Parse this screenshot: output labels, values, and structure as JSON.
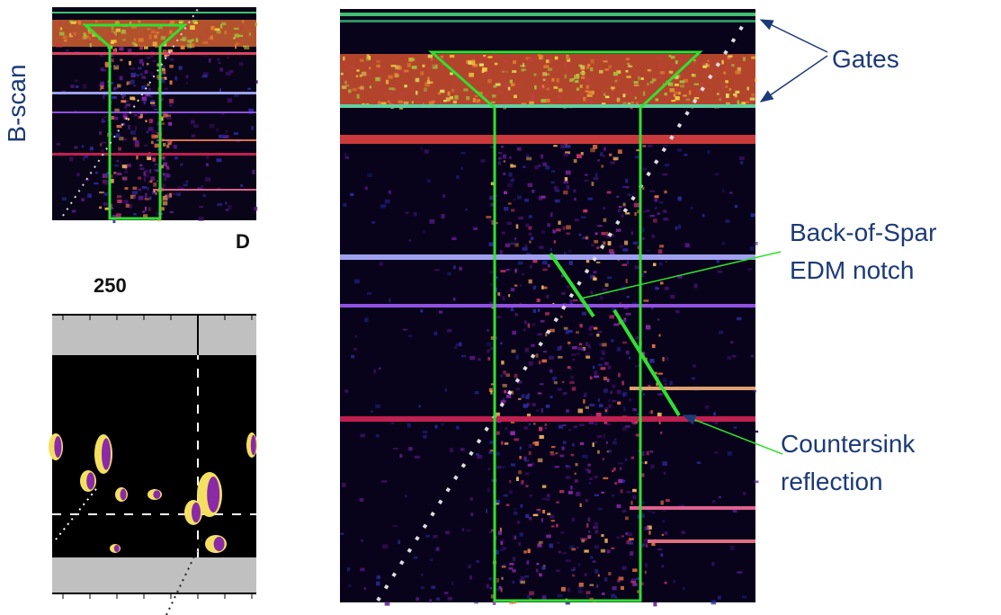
{
  "figure": {
    "left_label": "B-scan",
    "partial_label": "D",
    "scale_label": "250",
    "annotations": {
      "gates": "Gates",
      "notch": [
        "Back-of-Spar",
        "EDM notch"
      ],
      "countersink": [
        "Countersink",
        "reflection"
      ]
    }
  }
}
